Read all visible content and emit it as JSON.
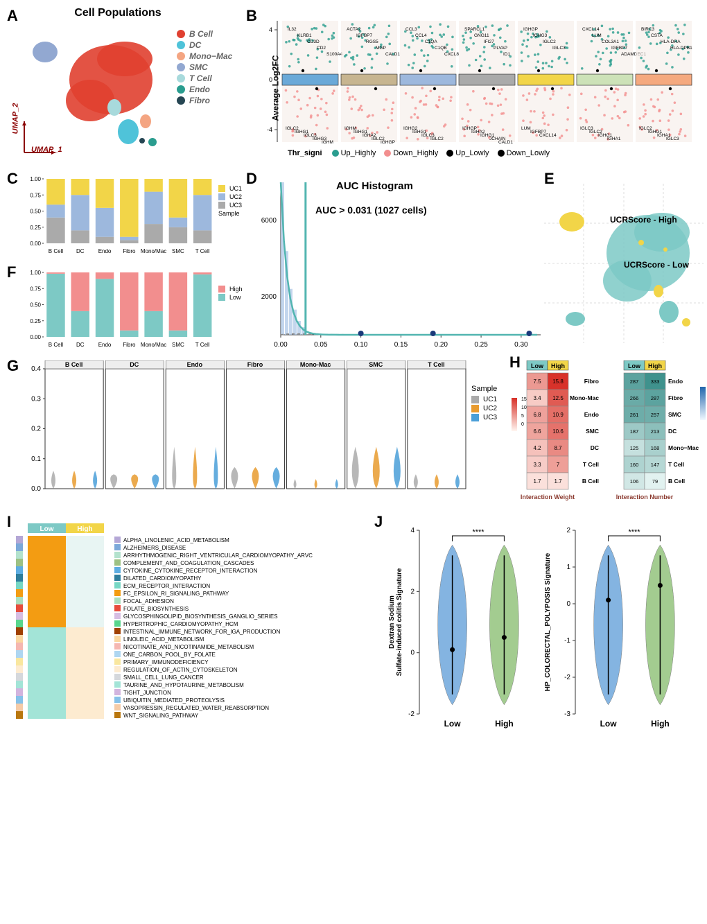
{
  "panelA": {
    "label": "A",
    "title": "Cell Populations",
    "xaxis": "UMAP_1",
    "yaxis": "UMAP_2",
    "populations": [
      {
        "name": "B Cell",
        "color": "#e04030"
      },
      {
        "name": "DC",
        "color": "#4fc3d9"
      },
      {
        "name": "Mono−Mac",
        "color": "#f4a582"
      },
      {
        "name": "SMC",
        "color": "#92a8d1"
      },
      {
        "name": "T Cell",
        "color": "#a8dadc"
      },
      {
        "name": "Endo",
        "color": "#2a9d8f"
      },
      {
        "name": "Fibro",
        "color": "#264653"
      }
    ]
  },
  "panelB": {
    "label": "B",
    "yaxis": "Average Log2FC",
    "legend_title": "Thr_signi",
    "legend": [
      {
        "name": "Up_Highly",
        "color": "#2a9d8f",
        "shape": "dot"
      },
      {
        "name": "Down_Highly",
        "color": "#f28e8e",
        "shape": "dot"
      },
      {
        "name": "Up_Lowly",
        "color": "#000",
        "shape": "dot"
      },
      {
        "name": "Down_Lowly",
        "color": "#000",
        "shape": "dot"
      }
    ],
    "yticks": [
      -4,
      0,
      4
    ],
    "clusters": [
      {
        "color": "#6aa9d8",
        "up": [
          "IL32",
          "KLRB1",
          "CD3D",
          "CD2",
          "S100A4"
        ],
        "down": [
          "IGLC2",
          "IGHG1",
          "IGLC3",
          "IGHG3",
          "IGHM"
        ]
      },
      {
        "color": "#c7b590",
        "up": [
          "ACTA2",
          "IGFBP7",
          "RGS5",
          "MGP",
          "CALD1"
        ],
        "down": [
          "IGHM",
          "IGHG1",
          "IGHA2",
          "IGLC2",
          "IGHGP"
        ]
      },
      {
        "color": "#9db8dd",
        "up": [
          "CCL3",
          "CCL4",
          "C1QA",
          "C1QB",
          "CXCL8"
        ],
        "down": [
          "IGHG2",
          "IGHG1",
          "IGLC3",
          "IGLC2"
        ]
      },
      {
        "color": "#aaa",
        "up": [
          "SPARCL1",
          "GNG11",
          "IFI27",
          "PLVAP",
          "ID1"
        ],
        "down": [
          "IGHGP",
          "IGHA2",
          "IGHG1",
          "JCHAIN",
          "CALD1",
          "TIMP1"
        ]
      },
      {
        "color": "#f2d548",
        "up": [
          "IGHGP",
          "IGHG3",
          "IGLC2",
          "IGLC3"
        ],
        "down": [
          "LUM",
          "IGFBP7",
          "CXCL14"
        ]
      },
      {
        "color": "#cde2b8",
        "up": [
          "CXCL14",
          "LUM",
          "COL3A1",
          "IGFBP7",
          "ADAMDEC1",
          "IGFBP5"
        ],
        "down": [
          "IGLC3",
          "IGLC2",
          "IGHG1",
          "IGHA1"
        ]
      },
      {
        "color": "#f5a97f",
        "up": [
          "BIRC3",
          "CSTA",
          "HLA-DRA",
          "HLA-DPB1"
        ],
        "down": [
          "IGLC2",
          "IGHG1",
          "IGHA1",
          "IGLC3"
        ]
      }
    ]
  },
  "panelC": {
    "label": "C",
    "yticks": [
      0.0,
      0.25,
      0.5,
      0.75,
      1.0
    ],
    "legend_title": "Sample",
    "samples": [
      {
        "name": "UC1",
        "color": "#f2d548"
      },
      {
        "name": "UC2",
        "color": "#9db8dd"
      },
      {
        "name": "UC3",
        "color": "#aaa"
      }
    ],
    "categories": [
      "B Cell",
      "DC",
      "Endo",
      "Fibro",
      "Mono/Mac",
      "SMC",
      "T Cell"
    ],
    "data": [
      {
        "UC1": 0.4,
        "UC2": 0.2,
        "UC3": 0.4
      },
      {
        "UC1": 0.25,
        "UC2": 0.55,
        "UC3": 0.2
      },
      {
        "UC1": 0.45,
        "UC2": 0.45,
        "UC3": 0.1
      },
      {
        "UC1": 0.9,
        "UC2": 0.05,
        "UC3": 0.05
      },
      {
        "UC1": 0.2,
        "UC2": 0.5,
        "UC3": 0.3
      },
      {
        "UC1": 0.6,
        "UC2": 0.15,
        "UC3": 0.25
      },
      {
        "UC1": 0.25,
        "UC2": 0.55,
        "UC3": 0.2
      }
    ]
  },
  "panelD": {
    "label": "D",
    "title": "AUC  Histogram",
    "subtitle": "AUC > 0.031  (1027 cells)",
    "xticks": [
      0.0,
      0.05,
      0.1,
      0.15,
      0.2,
      0.25,
      0.3
    ],
    "yticks": [
      2000,
      6000
    ],
    "threshold_x": 0.031,
    "line_color": "#52b5b0",
    "density_color": "#888",
    "hist_color": "#a9c5e6",
    "rug_points": [
      0.1,
      0.19,
      0.31
    ]
  },
  "panelE": {
    "label": "E",
    "high_label": "UCRScore - High",
    "low_label": "UCRScore - Low",
    "high_color": "#f2d548",
    "low_color": "#7dc9c5"
  },
  "panelF": {
    "label": "F",
    "yticks": [
      0.0,
      0.25,
      0.5,
      0.75,
      1.0
    ],
    "legend": [
      {
        "name": "High",
        "color": "#f28e8e"
      },
      {
        "name": "Low",
        "color": "#7dc9c5"
      }
    ],
    "categories": [
      "B Cell",
      "DC",
      "Endo",
      "Fibro",
      "Mono/Mac",
      "SMC",
      "T Cell"
    ],
    "data": [
      {
        "High": 0.02,
        "Low": 0.98
      },
      {
        "High": 0.6,
        "Low": 0.4
      },
      {
        "High": 0.1,
        "Low": 0.9
      },
      {
        "High": 0.9,
        "Low": 0.1
      },
      {
        "High": 0.6,
        "Low": 0.4
      },
      {
        "High": 0.9,
        "Low": 0.1
      },
      {
        "High": 0.03,
        "Low": 0.97
      }
    ]
  },
  "panelG": {
    "label": "G",
    "yticks": [
      0.0,
      0.1,
      0.2,
      0.3,
      0.4
    ],
    "categories": [
      "B Cell",
      "DC",
      "Endo",
      "Fibro",
      "Mono-Mac",
      "SMC",
      "T Cell"
    ],
    "legend_title": "Sample",
    "samples": [
      {
        "name": "UC1",
        "color": "#aaa"
      },
      {
        "name": "UC2",
        "color": "#e89b2f"
      },
      {
        "name": "UC3",
        "color": "#4a9fd8"
      }
    ]
  },
  "panelH": {
    "label": "H",
    "col_headers_left": [
      "Low",
      "High"
    ],
    "col_headers_right": [
      "Low",
      "High"
    ],
    "left_title": "Interaction Weight",
    "right_title": "Interaction Number",
    "left_rows": [
      "Fibro",
      "Mono-Mac",
      "Endo",
      "SMC",
      "DC",
      "T Cell",
      "B Cell"
    ],
    "right_rows": [
      "Endo",
      "Fibro",
      "SMC",
      "DC",
      "Mono−Mac",
      "T Cell",
      "B Cell"
    ],
    "left_data": [
      [
        7.5,
        15.8
      ],
      [
        3.4,
        12.5
      ],
      [
        6.8,
        10.9
      ],
      [
        6.6,
        10.6
      ],
      [
        4.2,
        8.7
      ],
      [
        3.3,
        7.0
      ],
      [
        1.7,
        1.7
      ]
    ],
    "right_data": [
      [
        287.0,
        333.0
      ],
      [
        266.0,
        287.0
      ],
      [
        261.0,
        257.0
      ],
      [
        187.0,
        213.0
      ],
      [
        125.0,
        168.0
      ],
      [
        160.0,
        147.0
      ],
      [
        106.0,
        79.0
      ]
    ],
    "left_scale": {
      "min": 0,
      "max": 15,
      "colors": [
        "#fff",
        "#d73027"
      ],
      "ticks": [
        0,
        5,
        10,
        15
      ]
    },
    "right_scale": {
      "min": 0,
      "max": 600,
      "colors": [
        "#fff",
        "#2166ac"
      ],
      "ticks": [
        0,
        200,
        400,
        600
      ]
    },
    "header_colors": {
      "Low": "#7dc9c5",
      "High": "#f2d548"
    }
  },
  "panelI": {
    "label": "I",
    "col_labels": [
      "Low",
      "High"
    ],
    "header_colors": {
      "Low": "#7dc9c5",
      "High": "#f2d548"
    },
    "pathways": [
      {
        "name": "ALPHA_LINOLENIC_ACID_METABOLISM",
        "color": "#b4a7d6"
      },
      {
        "name": "ALZHEIMERS_DISEASE",
        "color": "#7ba8d9"
      },
      {
        "name": "ARRHYTHMOGENIC_RIGHT_VENTRICULAR_CARDIOMYOPATHY_ARVC",
        "color": "#b3e2cd"
      },
      {
        "name": "COMPLEMENT_AND_COAGULATION_CASCADES",
        "color": "#9dc183"
      },
      {
        "name": "CYTOKINE_CYTOKINE_RECEPTOR_INTERACTION",
        "color": "#5dade2"
      },
      {
        "name": "DILATED_CARDIOMYOPATHY",
        "color": "#2e7d9c"
      },
      {
        "name": "ECM_RECEPTOR_INTERACTION",
        "color": "#76d7c4"
      },
      {
        "name": "FC_EPSILON_RI_SIGNALING_PATHWAY",
        "color": "#f39c12"
      },
      {
        "name": "FOCAL_ADHESION",
        "color": "#a9dfbf"
      },
      {
        "name": "FOLATE_BIOSYNTHESIS",
        "color": "#e74c3c"
      },
      {
        "name": "GLYCOSPHINGOLIPID_BIOSYNTHESIS_GANGLIO_SERIES",
        "color": "#d7bde2"
      },
      {
        "name": "HYPERTROPHIC_CARDIOMYOPATHY_HCM",
        "color": "#58d68d"
      },
      {
        "name": "INTESTINAL_IMMUNE_NETWORK_FOR_IGA_PRODUCTION",
        "color": "#a04000"
      },
      {
        "name": "LINOLEIC_ACID_METABOLISM",
        "color": "#fad7a0"
      },
      {
        "name": "NICOTINATE_AND_NICOTINAMIDE_METABOLISM",
        "color": "#f5b7b1"
      },
      {
        "name": "ONE_CARBON_POOL_BY_FOLATE",
        "color": "#aed6f1"
      },
      {
        "name": "PRIMARY_IMMUNODEFICIENCY",
        "color": "#f9e79f"
      },
      {
        "name": "REGULATION_OF_ACTIN_CYTOSKELETON",
        "color": "#fdebd0"
      },
      {
        "name": "SMALL_CELL_LUNG_CANCER",
        "color": "#d5d8dc"
      },
      {
        "name": "TAURINE_AND_HYPOTAURINE_METABOLISM",
        "color": "#a3e4d7"
      },
      {
        "name": "TIGHT_JUNCTION",
        "color": "#d2b4de"
      },
      {
        "name": "UBIQUITIN_MEDIATED_PROTEOLYSIS",
        "color": "#85c1e9"
      },
      {
        "name": "VASOPRESSIN_REGULATED_WATER_REABSORPTION",
        "color": "#f5cba7"
      },
      {
        "name": "WNT_SIGNALING_PATHWAY",
        "color": "#b9770e"
      }
    ],
    "heatmap_colors": {
      "low_top": "#f39c12",
      "low_bottom": "#a9dfbf",
      "high_top": "#e8f5f3",
      "high_bottom": "#fdebd0"
    }
  },
  "panelJ": {
    "label": "J",
    "plots": [
      {
        "ylabel": "Dextran Sodium\nSulfate-induced colitis Signature",
        "yticks": [
          -2,
          0,
          2,
          4
        ],
        "sig": "****",
        "low_color": "#6fa8dc",
        "high_color": "#93c47d"
      },
      {
        "ylabel": "HP_COLORECTAL_POLYPOSIS Signature",
        "yticks": [
          -3,
          -2,
          -1,
          0,
          1,
          2
        ],
        "sig": "****",
        "low_color": "#6fa8dc",
        "high_color": "#93c47d"
      }
    ],
    "xlabels": [
      "Low",
      "High"
    ]
  }
}
